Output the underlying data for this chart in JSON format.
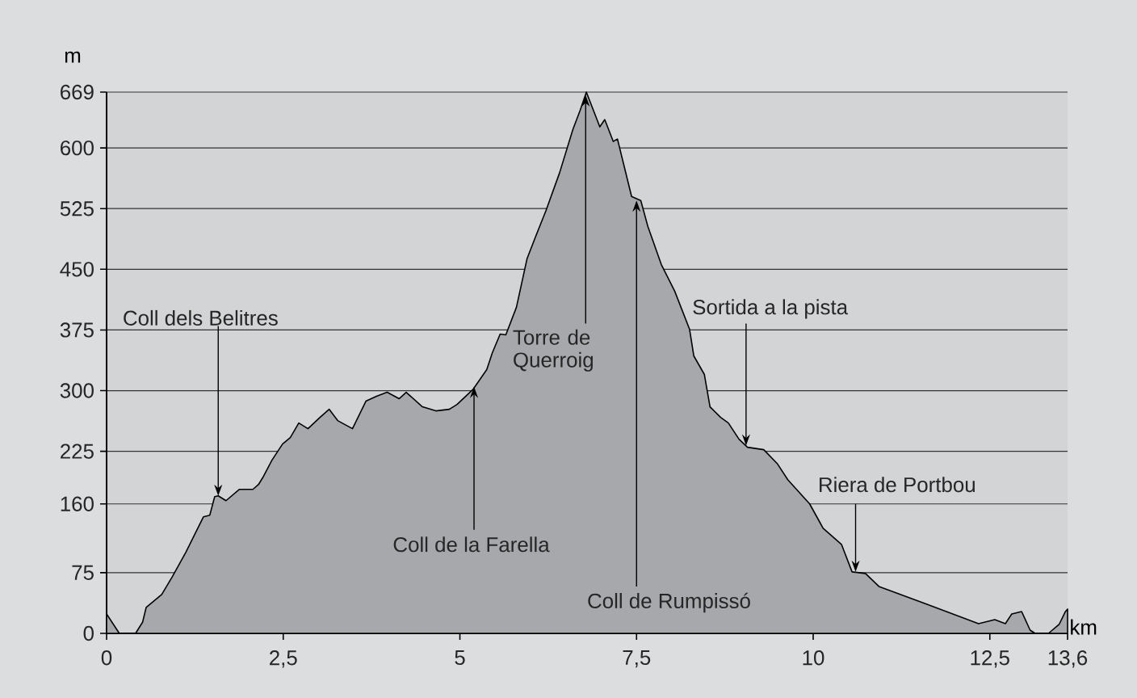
{
  "chart_data": {
    "type": "area",
    "xlabel": "km",
    "ylabel": "m",
    "x": [
      0,
      0.18,
      0.41,
      0.51,
      0.56,
      0.78,
      0.93,
      1.12,
      1.37,
      1.46,
      1.53,
      1.58,
      1.69,
      1.88,
      2.07,
      2.15,
      2.22,
      2.34,
      2.49,
      2.6,
      2.72,
      2.85,
      3.02,
      3.15,
      3.27,
      3.48,
      3.67,
      3.82,
      3.97,
      4.14,
      4.24,
      4.47,
      4.66,
      4.85,
      4.96,
      5.19,
      5.38,
      5.46,
      5.57,
      5.65,
      5.8,
      5.95,
      6.07,
      6.22,
      6.41,
      6.6,
      6.7,
      6.79,
      6.98,
      7.05,
      7.17,
      7.23,
      7.43,
      7.56,
      7.66,
      7.85,
      8.04,
      8.25,
      8.31,
      8.46,
      8.54,
      8.69,
      8.8,
      8.95,
      9.07,
      9.3,
      9.49,
      9.64,
      9.95,
      10.14,
      10.4,
      10.55,
      10.74,
      10.93,
      11.58,
      12.34,
      12.57,
      12.72,
      12.81,
      12.95,
      13.07,
      13.14,
      13.33,
      13.48,
      13.57,
      13.6
    ],
    "series": [
      {
        "color": "#a7a8ab",
        "values": [
          24,
          0,
          0,
          14,
          32,
          48,
          70,
          100,
          144,
          146,
          169,
          170,
          164,
          178,
          178,
          184,
          194,
          214,
          234,
          242,
          260,
          253,
          267,
          277,
          263,
          253,
          287,
          293,
          298,
          290,
          298,
          280,
          275,
          277,
          283,
          302,
          326,
          347,
          370,
          369,
          403,
          463,
          490,
          523,
          569,
          623,
          646,
          669,
          626,
          635,
          608,
          611,
          540,
          535,
          503,
          456,
          423,
          376,
          343,
          320,
          280,
          267,
          260,
          240,
          230,
          227,
          210,
          190,
          160,
          130,
          110,
          76,
          74,
          58,
          37,
          12,
          17,
          12,
          24,
          27,
          4,
          0,
          0,
          11,
          27,
          30
        ]
      }
    ],
    "xlim": [
      0,
      13.6
    ],
    "ylim": [
      0,
      669
    ],
    "xticks": [
      0,
      {
        "value": 2.5,
        "label": "2,5"
      },
      5,
      {
        "value": 7.5,
        "label": "7,5"
      },
      10,
      {
        "value": 12.5,
        "label": "12,5"
      },
      {
        "value": 13.6,
        "label": "13,6"
      }
    ],
    "yticks": [
      0,
      75,
      160,
      225,
      300,
      375,
      450,
      525,
      600,
      669
    ],
    "grid": "y",
    "annotations": [
      {
        "text": "Coll dels Belitres",
        "x": 1.58,
        "y": 170
      },
      {
        "text": "Coll de la Farella",
        "x": 5.2,
        "y": 305
      },
      {
        "text": "Torre de Querroig",
        "x": 6.78,
        "y": 665
      },
      {
        "text": "Coll de Rumpissó",
        "x": 7.5,
        "y": 535
      },
      {
        "text": "Sortida a la pista",
        "x": 9.05,
        "y": 232
      },
      {
        "text": "Riera de Portbou",
        "x": 10.6,
        "y": 76
      }
    ]
  }
}
